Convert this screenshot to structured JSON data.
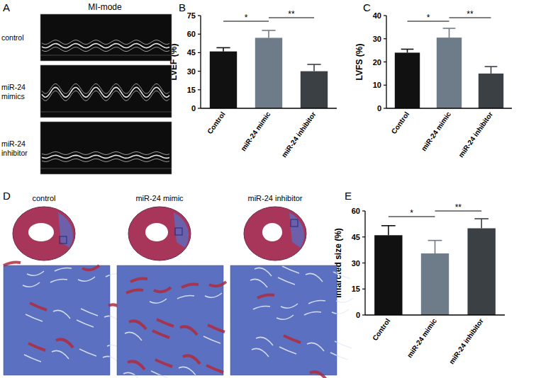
{
  "chart_data": [
    {
      "type": "bar",
      "y_label": "LVEF (%)",
      "categories": [
        "Control",
        "miR-24 mimic",
        "miR-24 inhibitor"
      ],
      "values": [
        46,
        57,
        30
      ],
      "errors": [
        3,
        6,
        5.5
      ],
      "colors": [
        "#111111",
        "#6e7c89",
        "#3b4045"
      ],
      "ylim": [
        0,
        75
      ],
      "yticks": [
        0,
        15,
        30,
        45,
        60,
        75
      ],
      "annotations": [
        {
          "text": "B"
        },
        {
          "text": "*",
          "from": 0,
          "to": 1
        },
        {
          "text": "**",
          "from": 1,
          "to": 2
        }
      ]
    },
    {
      "type": "bar",
      "y_label": "LVFS (%)",
      "categories": [
        "Control",
        "miR-24 mimic",
        "miR-24 inhibitor"
      ],
      "values": [
        24,
        30.5,
        15
      ],
      "errors": [
        1.5,
        4,
        3
      ],
      "colors": [
        "#111111",
        "#6e7c89",
        "#3b4045"
      ],
      "ylim": [
        0,
        40
      ],
      "yticks": [
        0,
        10,
        20,
        30,
        40
      ],
      "annotations": [
        {
          "text": "C"
        },
        {
          "text": "*",
          "from": 0,
          "to": 1
        },
        {
          "text": "**",
          "from": 1,
          "to": 2
        }
      ]
    },
    {
      "type": "bar",
      "y_label": "Infarcted size (%)",
      "categories": [
        "Control",
        "miR-24 mimic",
        "miR-24 inhibitor"
      ],
      "values": [
        46,
        35.5,
        50
      ],
      "errors": [
        5.5,
        7.5,
        5.5
      ],
      "colors": [
        "#111111",
        "#6e7c89",
        "#3b4045"
      ],
      "ylim": [
        0,
        60
      ],
      "yticks": [
        0,
        15,
        30,
        45,
        60
      ],
      "annotations": [
        {
          "text": "E"
        },
        {
          "text": "*",
          "from": 0,
          "to": 1
        },
        {
          "text": "**",
          "from": 1,
          "to": 2
        }
      ]
    }
  ],
  "image_panels": [
    {
      "label": "A",
      "title": "MI-mode",
      "rows": [
        "control",
        "miR-24 mimics",
        "miR-24 inhibitor"
      ]
    },
    {
      "label": "D",
      "columns": [
        "control",
        "miR-24 mimic",
        "miR-24 inhibitor"
      ]
    }
  ]
}
